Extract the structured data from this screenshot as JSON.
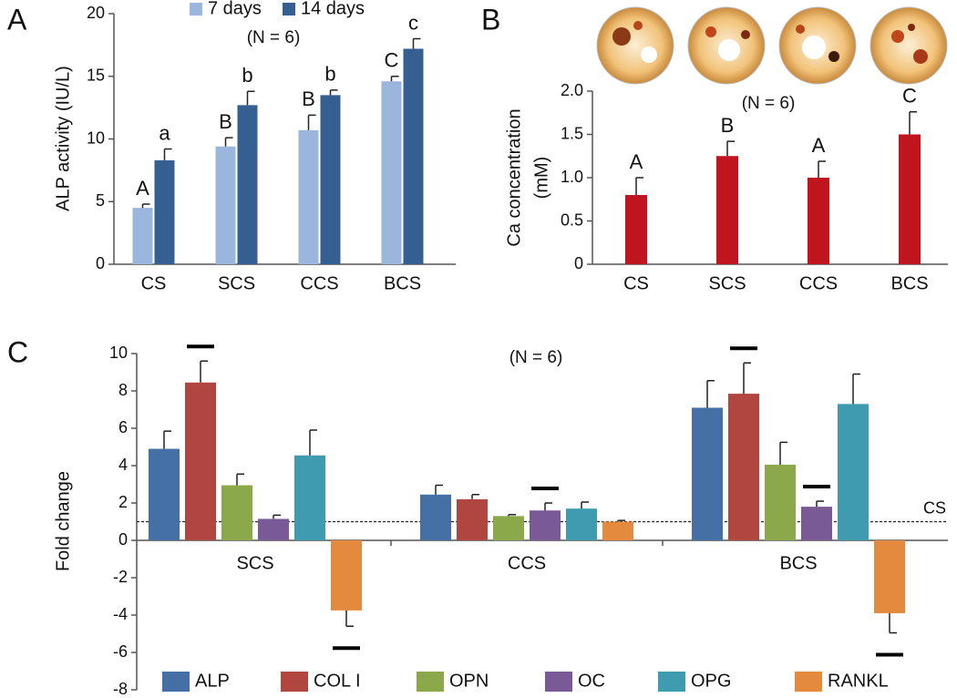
{
  "chart_data": [
    {
      "type": "bar",
      "panel": "A",
      "ylabel": "ALP activity (IU/L)",
      "annotation": "(N = 6)",
      "categories": [
        "CS",
        "SCS",
        "CCS",
        "BCS"
      ],
      "series": [
        {
          "name": "7 days",
          "color": "#9ab6dc",
          "values": [
            4.5,
            9.4,
            10.7,
            14.6
          ],
          "errors": [
            0.3,
            0.7,
            1.2,
            0.4
          ],
          "letters": [
            "A",
            "B",
            "B",
            "C"
          ]
        },
        {
          "name": "14 days",
          "color": "#365f91",
          "values": [
            8.3,
            12.7,
            13.5,
            17.2
          ],
          "errors": [
            0.9,
            1.1,
            0.4,
            0.8
          ],
          "letters": [
            "a",
            "b",
            "b",
            "c"
          ]
        }
      ],
      "ylim": [
        0,
        20
      ],
      "yticks": [
        0,
        5,
        10,
        15,
        20
      ]
    },
    {
      "type": "bar",
      "panel": "B",
      "ylabel": [
        "Ca concentration",
        "(mM)"
      ],
      "annotation": "(N = 6)",
      "categories": [
        "CS",
        "SCS",
        "CCS",
        "BCS"
      ],
      "series": [
        {
          "color": "#c0141f",
          "values": [
            0.8,
            1.25,
            1.0,
            1.5
          ],
          "errors": [
            0.2,
            0.17,
            0.19,
            0.26
          ],
          "letters": [
            "A",
            "B",
            "A",
            "C"
          ]
        }
      ],
      "ylim": [
        0,
        2
      ],
      "yticks": [
        0,
        0.5,
        {
          "value": 1,
          "label": "1.0"
        },
        1.5,
        {
          "value": 2,
          "label": "2.0"
        }
      ]
    },
    {
      "type": "bar",
      "panel": "C",
      "ylabel": "Fold change",
      "annotation": "(N = 6)",
      "categories": [
        "SCS",
        "CCS",
        "BCS"
      ],
      "series": [
        {
          "name": "ALP",
          "color": "#4470a6",
          "values": [
            4.9,
            2.45,
            7.1
          ],
          "errors": [
            0.95,
            0.5,
            1.45
          ],
          "significant": [
            false,
            false,
            false
          ]
        },
        {
          "name": "COL I",
          "color": "#b0463f",
          "values": [
            8.45,
            2.2,
            7.85
          ],
          "errors": [
            1.15,
            0.25,
            1.65
          ],
          "significant": [
            true,
            false,
            true
          ]
        },
        {
          "name": "OPN",
          "color": "#8ba84a",
          "values": [
            2.95,
            1.3,
            4.05
          ],
          "errors": [
            0.6,
            0.08,
            1.2
          ],
          "significant": [
            false,
            false,
            false
          ]
        },
        {
          "name": "OC",
          "color": "#7a5a96",
          "values": [
            1.15,
            1.6,
            1.8
          ],
          "errors": [
            0.2,
            0.4,
            0.3
          ],
          "significant": [
            false,
            true,
            true
          ]
        },
        {
          "name": "OPG",
          "color": "#3e9bb0",
          "values": [
            4.55,
            1.7,
            7.3
          ],
          "errors": [
            1.35,
            0.35,
            1.6
          ],
          "significant": [
            false,
            false,
            false
          ]
        },
        {
          "name": "RANKL",
          "color": "#e38a3e",
          "values": [
            -3.75,
            1.0,
            -3.9
          ],
          "errors": [
            0.85,
            0.07,
            1.05
          ],
          "significant": [
            true,
            false,
            true
          ]
        }
      ],
      "reference": {
        "value": 1,
        "label": "CS"
      },
      "ylim": [
        -8,
        10
      ],
      "yticks": [
        -8,
        -6,
        -4,
        -2,
        0,
        2,
        4,
        6,
        8,
        10
      ]
    }
  ]
}
